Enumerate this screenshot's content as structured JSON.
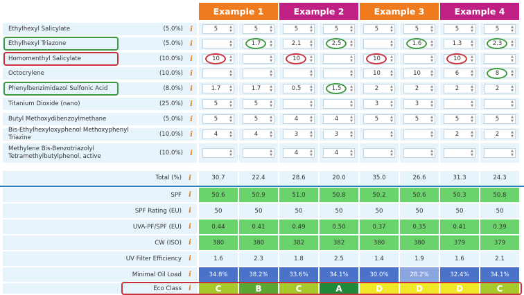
{
  "examples": [
    {
      "label": "Example 1",
      "color": "#f07a1e"
    },
    {
      "label": "Example 2",
      "color": "#c01f84"
    },
    {
      "label": "Example 3",
      "color": "#f07a1e"
    },
    {
      "label": "Example 4",
      "color": "#c01f84"
    }
  ],
  "info_glyph": "i",
  "ingredients": [
    {
      "name": "Ethylhexyl Salicylate",
      "pct": "(5.0%)",
      "values": [
        "5",
        "5",
        "5",
        "5",
        "5",
        "5",
        "5",
        "5"
      ]
    },
    {
      "name": "Ethylhexyl Triazone",
      "pct": "(5.0%)",
      "values": [
        "",
        "1.7",
        "2.1",
        "2.5",
        "",
        "1.6",
        "1.3",
        "2.3"
      ]
    },
    {
      "name": "Homomenthyl Salicylate",
      "pct": "(10.0%)",
      "values": [
        "10",
        "",
        "10",
        "",
        "10",
        "",
        "10",
        ""
      ]
    },
    {
      "name": "Octocrylene",
      "pct": "(10.0%)",
      "values": [
        "",
        "",
        "",
        "",
        "10",
        "10",
        "6",
        "8"
      ]
    },
    {
      "name": "Phenylbenzimidazol Sulfonic Acid",
      "pct": "(8.0%)",
      "values": [
        "1.7",
        "1.7",
        "0.5",
        "1.5",
        "2",
        "2",
        "2",
        "2"
      ]
    },
    {
      "name": "Titanium Dioxide (nano)",
      "pct": "(25.0%)",
      "values": [
        "5",
        "5",
        "",
        "",
        "3",
        "3",
        "",
        ""
      ]
    },
    {
      "name": "Butyl Methoxydibenzoylmethane",
      "pct": "(5.0%)",
      "values": [
        "5",
        "5",
        "4",
        "4",
        "5",
        "5",
        "5",
        "5"
      ]
    },
    {
      "name": "Bis-Ethylhexyloxyphenol Methoxyphenyl Triazine",
      "pct": "(10.0%)",
      "values": [
        "4",
        "4",
        "3",
        "3",
        "",
        "",
        "2",
        "2"
      ]
    },
    {
      "name": "Methylene Bis-Benzotriazolyl Tetramethylbutylphenol, active",
      "pct": "(10.0%)",
      "values": [
        "",
        "",
        "4",
        "4",
        "",
        "",
        "",
        ""
      ]
    }
  ],
  "total": {
    "label": "Total (%)",
    "values": [
      "30.7",
      "22.4",
      "28.6",
      "20.0",
      "35.0",
      "26.6",
      "31.3",
      "24.3"
    ]
  },
  "results": [
    {
      "label": "SPF",
      "values": [
        "50.6",
        "50.9",
        "51.0",
        "50.8",
        "50.2",
        "50.6",
        "50.3",
        "50.8"
      ],
      "colors": [
        "#6bd36b",
        "#6bd36b",
        "#6bd36b",
        "#6bd36b",
        "#6bd36b",
        "#6bd36b",
        "#6bd36b",
        "#6bd36b"
      ]
    },
    {
      "label": "SPF Rating (EU)",
      "values": [
        "50",
        "50",
        "50",
        "50",
        "50",
        "50",
        "50",
        "50"
      ],
      "colors": [
        "#e8f4fb",
        "#e8f4fb",
        "#e8f4fb",
        "#e8f4fb",
        "#e8f4fb",
        "#e8f4fb",
        "#e8f4fb",
        "#e8f4fb"
      ]
    },
    {
      "label": "UVA-PF/SPF (EU)",
      "values": [
        "0.44",
        "0.41",
        "0.49",
        "0.50",
        "0.37",
        "0.35",
        "0.41",
        "0.39"
      ],
      "colors": [
        "#6bd36b",
        "#6bd36b",
        "#6bd36b",
        "#6bd36b",
        "#6bd36b",
        "#6bd36b",
        "#6bd36b",
        "#6bd36b"
      ]
    },
    {
      "label": "CW (ISO)",
      "values": [
        "380",
        "380",
        "382",
        "382",
        "380",
        "380",
        "379",
        "379"
      ],
      "colors": [
        "#6bd36b",
        "#6bd36b",
        "#6bd36b",
        "#6bd36b",
        "#6bd36b",
        "#6bd36b",
        "#6bd36b",
        "#6bd36b"
      ]
    },
    {
      "label": "UV Filter Efficiency",
      "values": [
        "1.6",
        "2.3",
        "1.8",
        "2.5",
        "1.4",
        "1.9",
        "1.6",
        "2.1"
      ],
      "colors": [
        "#e8f4fb",
        "#e8f4fb",
        "#e8f4fb",
        "#e8f4fb",
        "#e8f4fb",
        "#e8f4fb",
        "#e8f4fb",
        "#e8f4fb"
      ]
    },
    {
      "label": "Minimal Oil Load",
      "values": [
        "34.8%",
        "38.2%",
        "33.6%",
        "34.1%",
        "30.0%",
        "28.2%",
        "32.4%",
        "34.1%"
      ],
      "colors": [
        "#4a72c9",
        "#4a72c9",
        "#4a72c9",
        "#4a72c9",
        "#4a72c9",
        "#8aa5e0",
        "#4a72c9",
        "#4a72c9"
      ]
    }
  ],
  "eco": {
    "label": "Eco Class",
    "values": [
      "C",
      "B",
      "C",
      "A",
      "D",
      "D",
      "D",
      "C"
    ],
    "colors": [
      "#a8c92b",
      "#5aa832",
      "#a8c92b",
      "#1f8a3a",
      "#f2e82a",
      "#f2e82a",
      "#f2e82a",
      "#a8c92b"
    ]
  },
  "highlights": {
    "green_rings": [
      [
        1,
        1
      ],
      [
        1,
        3
      ],
      [
        1,
        5
      ],
      [
        1,
        7
      ],
      [
        3,
        7
      ],
      [
        4,
        3
      ]
    ],
    "red_rings": [
      [
        2,
        0
      ],
      [
        2,
        2
      ],
      [
        2,
        4
      ],
      [
        2,
        6
      ]
    ],
    "green_label_boxes": [
      1,
      4
    ],
    "red_label_boxes": [
      2
    ]
  },
  "colors": {
    "row_bg": "#e8f4fb",
    "separator": "#2b7fc4",
    "ring_green": "#3f9a3f",
    "ring_red": "#c8323c",
    "info_icon": "#e77b1a"
  }
}
